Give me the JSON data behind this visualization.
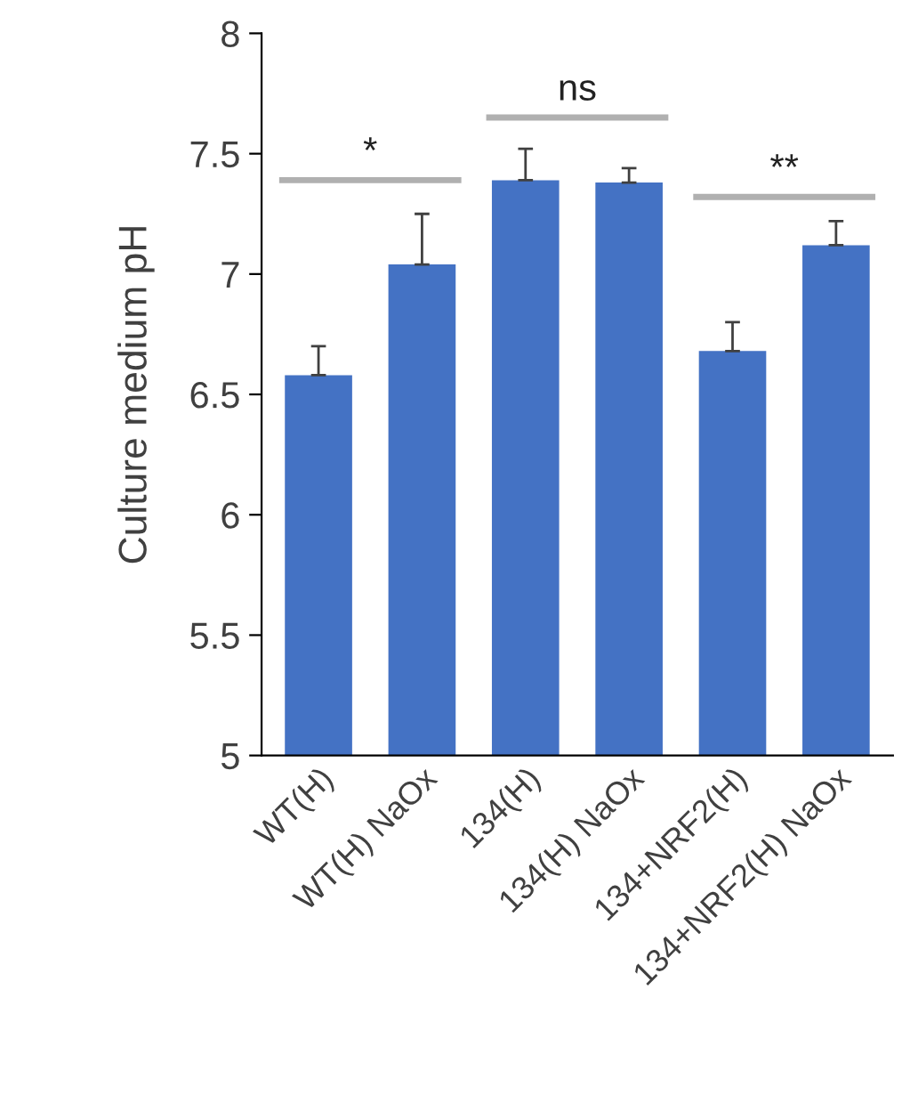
{
  "chart_data": {
    "type": "bar",
    "ylabel": "Culture medium pH",
    "categories": [
      "WT(H)",
      "WT(H) NaOx",
      "134(H)",
      "134(H) NaOx",
      "134+NRF2(H)",
      "134+NRF2(H) NaOx"
    ],
    "values": [
      6.58,
      7.04,
      7.39,
      7.38,
      6.68,
      7.12
    ],
    "errors": [
      [
        6.58,
        6.7
      ],
      [
        7.04,
        7.25
      ],
      [
        7.39,
        7.52
      ],
      [
        7.38,
        7.44
      ],
      [
        6.68,
        6.8
      ],
      [
        7.12,
        7.22
      ]
    ],
    "color": "#4472c4",
    "ylim": [
      5,
      8
    ],
    "yticks": [
      5,
      5.5,
      6,
      6.5,
      7,
      7.5,
      8
    ],
    "grid": false,
    "legend": false,
    "annotations": [
      "*",
      "ns",
      "**"
    ]
  }
}
